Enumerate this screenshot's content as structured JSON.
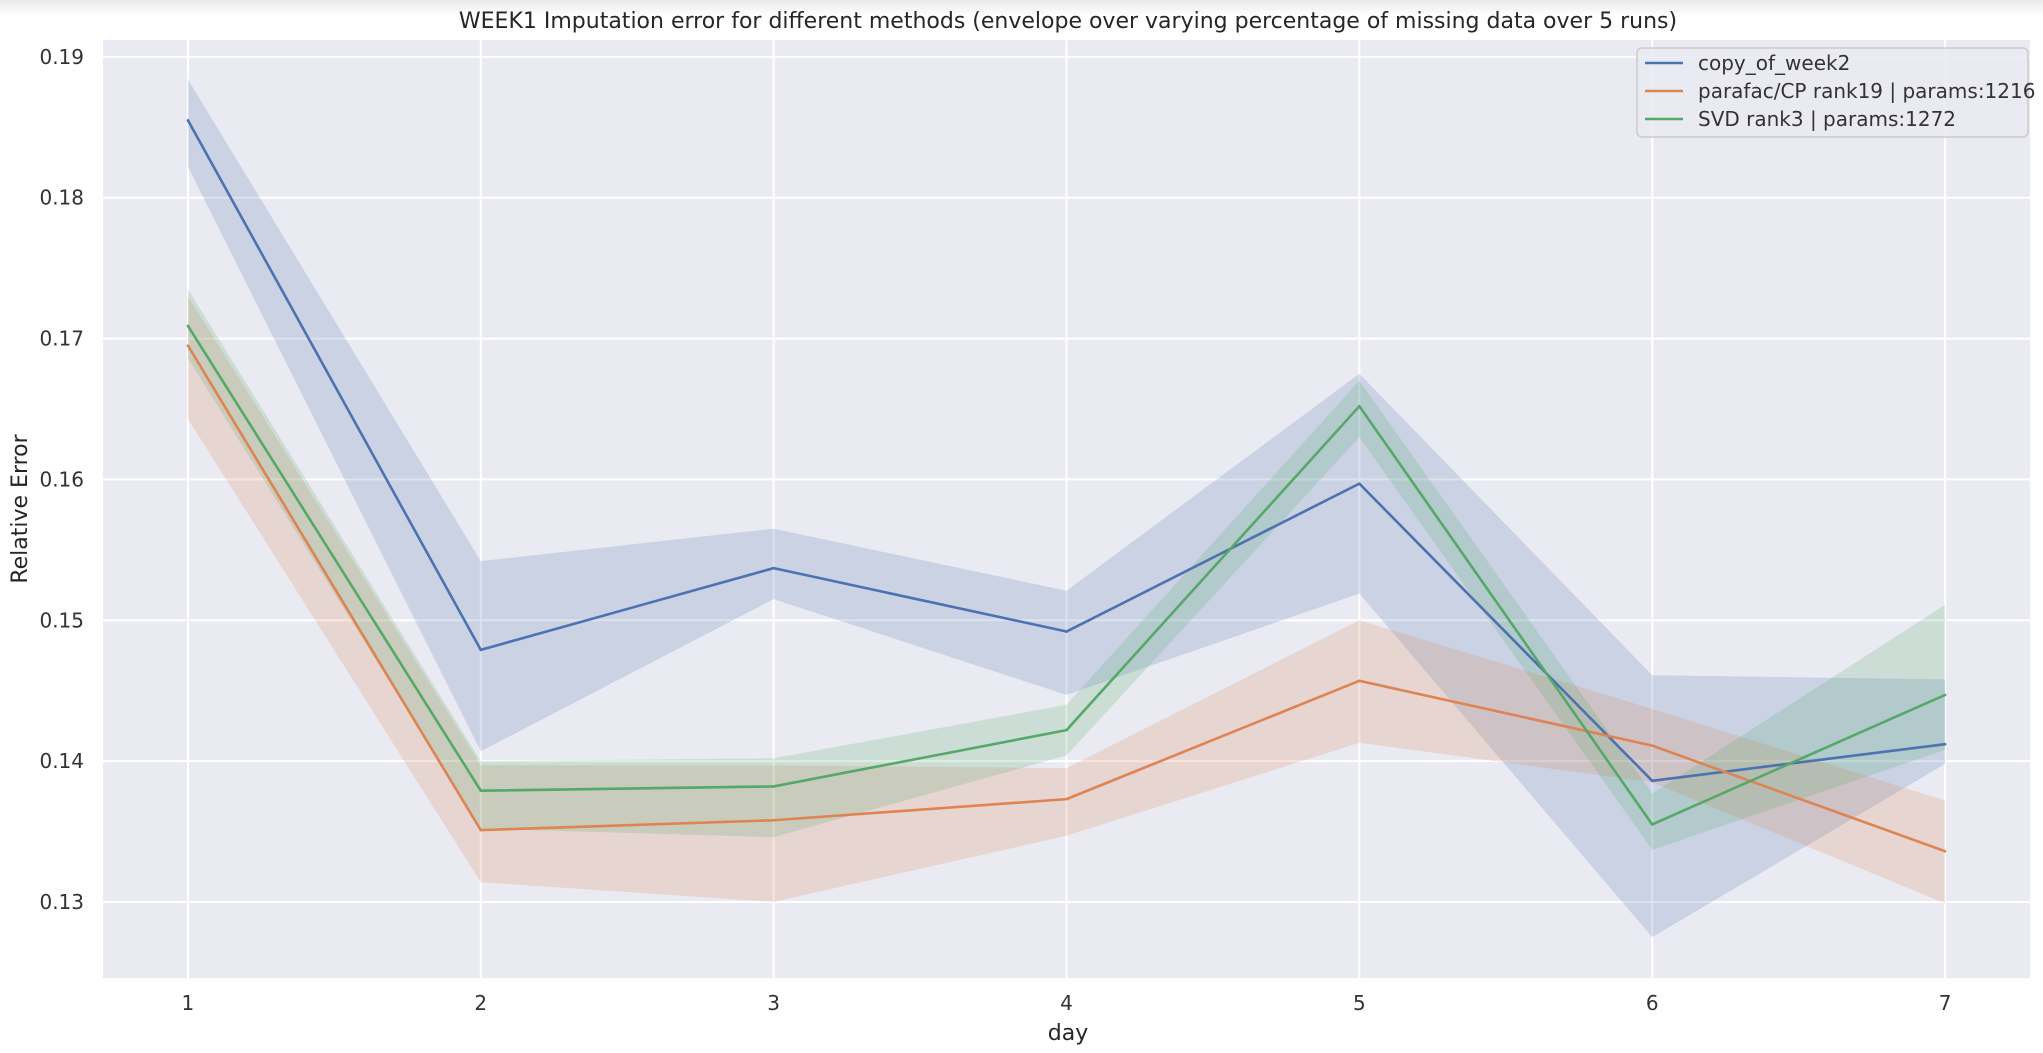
{
  "chart_data": {
    "type": "line",
    "title": "WEEK1 Imputation error for different methods (envelope over varying percentage of missing data over 5 runs)",
    "xlabel": "day",
    "ylabel": "Relative Error",
    "x": [
      1,
      2,
      3,
      4,
      5,
      6,
      7
    ],
    "x_tick_labels": [
      "1",
      "2",
      "3",
      "4",
      "5",
      "6",
      "7"
    ],
    "xlim": [
      0.71,
      7.29
    ],
    "y_ticks": [
      0.13,
      0.14,
      0.15,
      0.16,
      0.17,
      0.18,
      0.19
    ],
    "y_tick_labels": [
      "0.13",
      "0.14",
      "0.15",
      "0.16",
      "0.17",
      "0.18",
      "0.19"
    ],
    "ylim": [
      0.1246,
      0.1912
    ],
    "grid": true,
    "legend_position": "top-right",
    "background_color": "#eaeaf2",
    "series": [
      {
        "name": "copy_of_week2",
        "color": "#4c72b0",
        "values": [
          0.1855,
          0.1479,
          0.1537,
          0.1492,
          0.1597,
          0.1386,
          0.1412
        ],
        "lower": [
          0.1822,
          0.1407,
          0.1515,
          0.1447,
          0.1519,
          0.1275,
          0.1398
        ],
        "upper": [
          0.1884,
          0.1542,
          0.1565,
          0.1521,
          0.1675,
          0.1461,
          0.1458
        ]
      },
      {
        "name": "parafac/CP rank19 | params:1216",
        "color": "#dd8452",
        "values": [
          0.1695,
          0.1351,
          0.1358,
          0.1373,
          0.1457,
          0.1411,
          0.1336
        ],
        "lower": [
          0.1643,
          0.1314,
          0.13,
          0.1347,
          0.1413,
          0.1385,
          0.1299
        ],
        "upper": [
          0.173,
          0.1397,
          0.1397,
          0.1395,
          0.15,
          0.1437,
          0.1372
        ]
      },
      {
        "name": "SVD rank3 | params:1272",
        "color": "#55a868",
        "values": [
          0.1709,
          0.1379,
          0.1382,
          0.1422,
          0.1652,
          0.1355,
          0.1447
        ],
        "lower": [
          0.1686,
          0.1352,
          0.1346,
          0.1404,
          0.163,
          0.1337,
          0.1408
        ],
        "upper": [
          0.1735,
          0.14,
          0.1402,
          0.144,
          0.167,
          0.1377,
          0.1511
        ]
      }
    ]
  }
}
